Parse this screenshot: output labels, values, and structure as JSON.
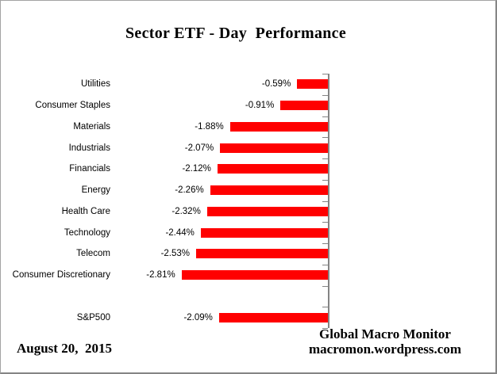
{
  "chart_data": {
    "type": "bar",
    "orientation": "horizontal",
    "title": "Sector ETF - Day  Performance",
    "categories": [
      "Utilities",
      "Consumer Staples",
      "Materials",
      "Industrials",
      "Financials",
      "Energy",
      "Health Care",
      "Technology",
      "Telecom",
      "Consumer Discretionary",
      "S&P500"
    ],
    "values": [
      -0.59,
      -0.91,
      -1.88,
      -2.07,
      -2.12,
      -2.26,
      -2.32,
      -2.44,
      -2.53,
      -2.81,
      -2.09
    ],
    "value_labels": [
      "-0.59%",
      "-0.91%",
      "-1.88%",
      "-2.07%",
      "-2.12%",
      "-2.26%",
      "-2.32%",
      "-2.44%",
      "-2.53%",
      "-2.81%",
      "-2.09%"
    ],
    "spacer_before_last": true,
    "xlim": [
      -3,
      0
    ],
    "grid": false,
    "legend": "none",
    "bar_color": "#FF0000",
    "axis_color": "#848484",
    "label_color": "#000000"
  },
  "footer": {
    "date": "August 20,  2015",
    "source_line1": "Global Macro Monitor",
    "source_line2": "macromon.wordpress.com"
  }
}
